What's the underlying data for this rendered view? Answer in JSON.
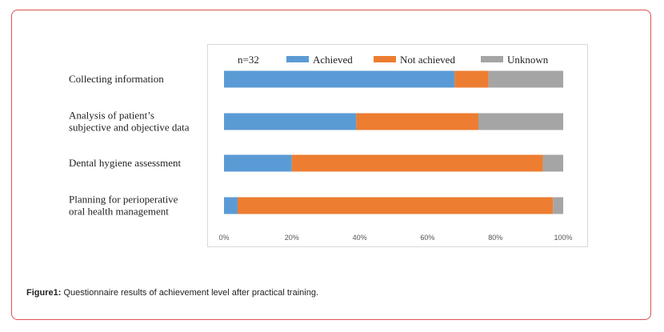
{
  "chart_data": {
    "type": "bar",
    "orientation": "horizontal",
    "stacked": true,
    "note": "n=32",
    "categories": [
      [
        "Collecting information"
      ],
      [
        "Analysis of patient’s",
        "subjective and objective data"
      ],
      [
        "Dental hygiene assessment"
      ],
      [
        "Planning for perioperative",
        "oral health management"
      ]
    ],
    "series": [
      {
        "name": "Achieved",
        "color": "#5b9bd5",
        "values": [
          68,
          39,
          20,
          4
        ]
      },
      {
        "name": "Not achieved",
        "color": "#ed7d31",
        "values": [
          10,
          36,
          74,
          93
        ]
      },
      {
        "name": "Unknown",
        "color": "#a5a5a5",
        "values": [
          22,
          25,
          6,
          3
        ]
      }
    ],
    "xticks": [
      "0%",
      "20%",
      "40%",
      "60%",
      "80%",
      "100%"
    ],
    "xlim": [
      0,
      100
    ],
    "grid": false,
    "legend_position": "top"
  },
  "caption": {
    "label": "Figure1:",
    "text": " Questionnaire results of achievement level after practical training."
  }
}
